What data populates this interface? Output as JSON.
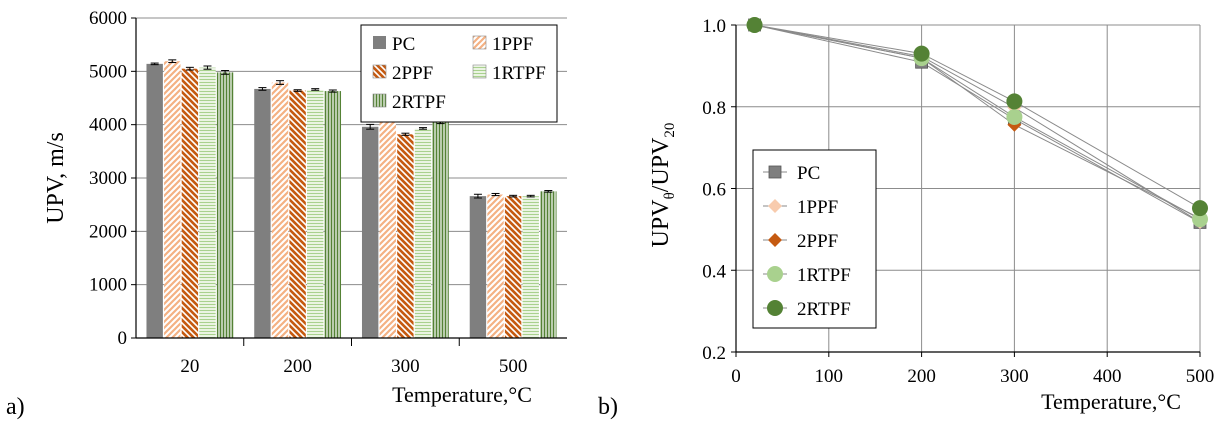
{
  "chart_data": [
    {
      "type": "bar",
      "panel_label": "a)",
      "xlabel": "Temperature,°C",
      "ylabel": "UPV, m/s",
      "ylim": [
        0,
        6000
      ],
      "yticks": [
        0,
        1000,
        2000,
        3000,
        4000,
        5000,
        6000
      ],
      "grid": "horizontal",
      "legend_position": "top-right",
      "categories": [
        "20",
        "200",
        "300",
        "500"
      ],
      "series": [
        {
          "name": "PC",
          "pattern": "solid",
          "color": "#7f7f7f",
          "values": [
            5140,
            4670,
            3960,
            2660
          ],
          "errors": [
            15,
            25,
            45,
            35
          ]
        },
        {
          "name": "1PPF",
          "pattern": "diagonal-up",
          "color": "#f4b183",
          "values": [
            5190,
            4790,
            4140,
            2690
          ],
          "errors": [
            25,
            35,
            20,
            20
          ]
        },
        {
          "name": "2PPF",
          "pattern": "diagonal-down",
          "color": "#c55a11",
          "values": [
            5050,
            4640,
            3820,
            2660
          ],
          "errors": [
            25,
            15,
            20,
            15
          ]
        },
        {
          "name": "1RTPF",
          "pattern": "horizontal",
          "color": "#a9d18e",
          "values": [
            5070,
            4660,
            3930,
            2660
          ],
          "errors": [
            30,
            15,
            15,
            15
          ]
        },
        {
          "name": "2RTPF",
          "pattern": "vertical",
          "color": "#548235",
          "values": [
            4980,
            4630,
            4050,
            2750
          ],
          "errors": [
            35,
            20,
            30,
            15
          ]
        }
      ]
    },
    {
      "type": "line",
      "panel_label": "b)",
      "xlabel": "Temperature,°C",
      "ylabel_main": "UPV",
      "ylabel_sub1": "θ",
      "ylabel_sep": "/UPV",
      "ylabel_sub2": "20",
      "xlim": [
        0,
        500
      ],
      "xticks": [
        0,
        100,
        200,
        300,
        400,
        500
      ],
      "ylim": [
        0.2,
        1.0
      ],
      "yticks": [
        "0.2",
        "0.4",
        "0.6",
        "0.8",
        "1.0"
      ],
      "grid": "both",
      "legend_position": "bottom-left",
      "x": [
        20,
        200,
        300,
        500
      ],
      "series": [
        {
          "name": "PC",
          "marker": "square",
          "color": "#7f7f7f",
          "values": [
            1.0,
            0.909,
            0.77,
            0.517
          ]
        },
        {
          "name": "1PPF",
          "marker": "diamond",
          "color": "#f8cbad",
          "values": [
            1.0,
            0.923,
            0.798,
            0.518
          ]
        },
        {
          "name": "2PPF",
          "marker": "diamond",
          "color": "#c55a11",
          "values": [
            1.0,
            0.919,
            0.756,
            0.527
          ]
        },
        {
          "name": "1RTPF",
          "marker": "circle",
          "color": "#a9d18e",
          "values": [
            1.0,
            0.919,
            0.775,
            0.525
          ]
        },
        {
          "name": "2RTPF",
          "marker": "circle",
          "color": "#548235",
          "values": [
            1.0,
            0.93,
            0.813,
            0.552
          ]
        }
      ]
    }
  ]
}
